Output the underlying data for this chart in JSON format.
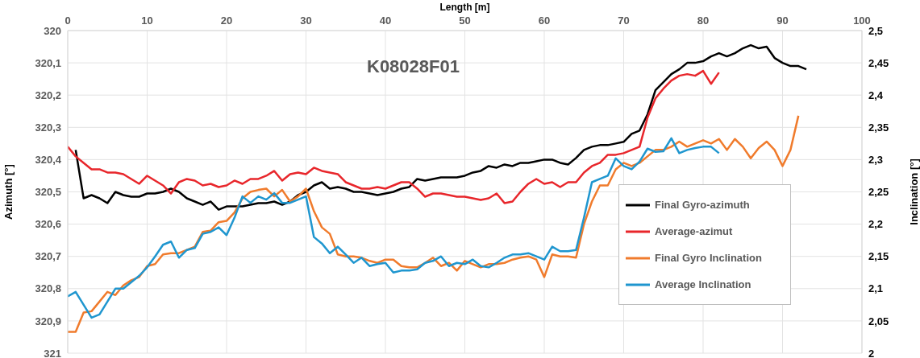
{
  "chart_data": {
    "type": "line",
    "title": "K08028F01",
    "xlabel": "Length [m]",
    "ylabel": "Azimuth [°]",
    "y2label": "Inclination [°]",
    "xlim": [
      0,
      100
    ],
    "xticks": [
      0,
      10,
      20,
      30,
      40,
      50,
      60,
      70,
      80,
      90,
      100
    ],
    "ylim": [
      321,
      320
    ],
    "yticks": [
      320,
      {
        "value": 320.1,
        "label": "320,1"
      },
      {
        "value": 320.2,
        "label": "320,2"
      },
      {
        "value": 320.3,
        "label": "320,3"
      },
      {
        "value": 320.4,
        "label": "320,4"
      },
      {
        "value": 320.5,
        "label": "320,5"
      },
      {
        "value": 320.6,
        "label": "320,6"
      },
      {
        "value": 320.7,
        "label": "320,7"
      },
      {
        "value": 320.8,
        "label": "320,8"
      },
      {
        "value": 320.9,
        "label": "320,9"
      },
      321
    ],
    "y2lim": [
      2,
      2.5
    ],
    "y2ticks": [
      2,
      {
        "value": 2.05,
        "label": "2,05"
      },
      {
        "value": 2.1,
        "label": "2,1"
      },
      {
        "value": 2.15,
        "label": "2,15"
      },
      {
        "value": 2.2,
        "label": "2,2"
      },
      {
        "value": 2.25,
        "label": "2,25"
      },
      {
        "value": 2.3,
        "label": "2,3"
      },
      {
        "value": 2.35,
        "label": "2,35"
      },
      {
        "value": 2.4,
        "label": "2,4"
      },
      {
        "value": 2.45,
        "label": "2,45"
      },
      {
        "value": 2.5,
        "label": "2,5"
      }
    ],
    "grid": true,
    "legend": "bottom right",
    "marker": "none",
    "line_style": "solid",
    "series": [
      {
        "name": "Final Gyro-azimuth",
        "color": "#000000",
        "x": [
          1,
          2,
          3,
          4,
          5,
          6,
          7,
          8,
          9,
          10,
          11,
          12,
          13,
          14,
          15,
          16,
          17,
          18,
          19,
          20,
          21,
          22,
          23,
          24,
          25,
          26,
          27,
          28,
          29,
          30,
          31,
          32,
          33,
          34,
          35,
          36,
          37,
          38,
          39,
          40,
          41,
          42,
          43,
          44,
          45,
          46,
          47,
          48,
          49,
          50,
          51,
          52,
          53,
          54,
          55,
          56,
          57,
          58,
          59,
          60,
          61,
          62,
          63,
          64,
          65,
          66,
          67,
          68,
          69,
          70,
          71,
          72,
          73,
          74,
          75,
          76,
          77,
          78,
          79,
          80,
          81,
          82,
          83,
          84,
          85,
          86,
          87,
          88,
          89,
          90,
          91,
          92,
          93
        ],
        "values": [
          320.37,
          320.52,
          320.51,
          320.52,
          320.535,
          320.5,
          320.51,
          320.515,
          320.515,
          320.505,
          320.505,
          320.5,
          320.49,
          320.5,
          320.52,
          320.53,
          320.54,
          320.53,
          320.555,
          320.545,
          320.545,
          320.545,
          320.54,
          320.535,
          320.535,
          320.53,
          320.54,
          320.53,
          320.51,
          320.5,
          320.48,
          320.47,
          320.49,
          320.485,
          320.49,
          320.5,
          320.5,
          320.505,
          320.51,
          320.505,
          320.5,
          320.49,
          320.485,
          320.46,
          320.465,
          320.46,
          320.455,
          320.455,
          320.455,
          320.45,
          320.44,
          320.435,
          320.42,
          320.425,
          320.415,
          320.42,
          320.41,
          320.41,
          320.405,
          320.4,
          320.4,
          320.41,
          320.415,
          320.395,
          320.37,
          320.36,
          320.355,
          320.355,
          320.35,
          320.345,
          320.32,
          320.31,
          320.26,
          320.185,
          320.16,
          320.135,
          320.12,
          320.1,
          320.1,
          320.095,
          320.08,
          320.07,
          320.08,
          320.07,
          320.055,
          320.045,
          320.055,
          320.05,
          320.085,
          320.1,
          320.11,
          320.11,
          320.12
        ]
      },
      {
        "name": "Average-azimut",
        "color": "#e8262b",
        "x": [
          0,
          1,
          2,
          3,
          4,
          5,
          6,
          7,
          8,
          9,
          10,
          11,
          12,
          13,
          14,
          15,
          16,
          17,
          18,
          19,
          20,
          21,
          22,
          23,
          24,
          25,
          26,
          27,
          28,
          29,
          30,
          31,
          32,
          33,
          34,
          35,
          36,
          37,
          38,
          39,
          40,
          41,
          42,
          43,
          44,
          45,
          46,
          47,
          48,
          49,
          50,
          51,
          52,
          53,
          54,
          55,
          56,
          57,
          58,
          59,
          60,
          61,
          62,
          63,
          64,
          65,
          66,
          67,
          68,
          69,
          70,
          71,
          72,
          73,
          74,
          75,
          76,
          77,
          78,
          79,
          80,
          81,
          82
        ],
        "values": [
          320.36,
          320.39,
          320.41,
          320.43,
          320.43,
          320.44,
          320.44,
          320.445,
          320.46,
          320.475,
          320.45,
          320.465,
          320.48,
          320.505,
          320.47,
          320.46,
          320.465,
          320.48,
          320.475,
          320.485,
          320.48,
          320.465,
          320.475,
          320.46,
          320.46,
          320.45,
          320.435,
          320.465,
          320.445,
          320.44,
          320.445,
          320.425,
          320.435,
          320.44,
          320.445,
          320.47,
          320.48,
          320.49,
          320.49,
          320.485,
          320.49,
          320.48,
          320.47,
          320.47,
          320.49,
          320.515,
          320.505,
          320.505,
          320.51,
          320.515,
          320.515,
          320.52,
          320.525,
          320.52,
          320.505,
          320.535,
          320.53,
          320.5,
          320.475,
          320.46,
          320.475,
          320.47,
          320.485,
          320.47,
          320.47,
          320.44,
          320.42,
          320.41,
          320.385,
          320.385,
          320.38,
          320.37,
          320.36,
          320.27,
          320.21,
          320.18,
          320.155,
          320.14,
          320.135,
          320.14,
          320.125,
          320.165,
          320.13
        ]
      },
      {
        "name": "Final Gyro Inclination",
        "color": "#f07b2c",
        "axis": "y2",
        "x": [
          0,
          1,
          2,
          3,
          4,
          5,
          6,
          7,
          8,
          9,
          10,
          11,
          12,
          13,
          14,
          15,
          16,
          17,
          18,
          19,
          20,
          21,
          22,
          23,
          24,
          25,
          26,
          27,
          28,
          29,
          30,
          31,
          32,
          33,
          34,
          35,
          36,
          37,
          38,
          39,
          40,
          41,
          42,
          43,
          44,
          45,
          46,
          47,
          48,
          49,
          50,
          51,
          52,
          53,
          54,
          55,
          56,
          57,
          58,
          59,
          60,
          61,
          62,
          63,
          64,
          65,
          66,
          67,
          68,
          69,
          70,
          71,
          72,
          73,
          74,
          75,
          76,
          77,
          78,
          79,
          80,
          81,
          82,
          83,
          84,
          85,
          86,
          87,
          88,
          89,
          90,
          91,
          92
        ],
        "values": [
          2.033,
          2.033,
          2.063,
          2.065,
          2.08,
          2.095,
          2.09,
          2.105,
          2.113,
          2.118,
          2.135,
          2.138,
          2.153,
          2.155,
          2.155,
          2.16,
          2.165,
          2.188,
          2.19,
          2.203,
          2.205,
          2.218,
          2.24,
          2.25,
          2.253,
          2.255,
          2.243,
          2.253,
          2.235,
          2.243,
          2.255,
          2.22,
          2.195,
          2.185,
          2.153,
          2.15,
          2.15,
          2.148,
          2.143,
          2.14,
          2.145,
          2.145,
          2.135,
          2.133,
          2.133,
          2.14,
          2.148,
          2.135,
          2.14,
          2.128,
          2.143,
          2.138,
          2.133,
          2.138,
          2.138,
          2.14,
          2.145,
          2.148,
          2.15,
          2.145,
          2.118,
          2.153,
          2.15,
          2.15,
          2.148,
          2.2,
          2.235,
          2.26,
          2.26,
          2.285,
          2.295,
          2.29,
          2.295,
          2.305,
          2.315,
          2.315,
          2.32,
          2.328,
          2.32,
          2.325,
          2.33,
          2.325,
          2.332,
          2.315,
          2.332,
          2.32,
          2.302,
          2.318,
          2.328,
          2.315,
          2.29,
          2.315,
          2.368
        ]
      },
      {
        "name": "Average Inclination",
        "color": "#1f96cf",
        "axis": "y2",
        "x": [
          0,
          1,
          2,
          3,
          4,
          5,
          6,
          7,
          8,
          9,
          10,
          11,
          12,
          13,
          14,
          15,
          16,
          17,
          18,
          19,
          20,
          21,
          22,
          23,
          24,
          25,
          26,
          27,
          28,
          29,
          30,
          31,
          32,
          33,
          34,
          35,
          36,
          37,
          38,
          39,
          40,
          41,
          42,
          43,
          44,
          45,
          46,
          47,
          48,
          49,
          50,
          51,
          52,
          53,
          54,
          55,
          56,
          57,
          58,
          59,
          60,
          61,
          62,
          63,
          64,
          65,
          66,
          67,
          68,
          69,
          70,
          71,
          72,
          73,
          74,
          75,
          76,
          77,
          78,
          79,
          80,
          81,
          82
        ],
        "values": [
          2.088,
          2.095,
          2.075,
          2.055,
          2.06,
          2.08,
          2.1,
          2.1,
          2.11,
          2.12,
          2.133,
          2.15,
          2.168,
          2.173,
          2.148,
          2.16,
          2.163,
          2.185,
          2.188,
          2.195,
          2.183,
          2.21,
          2.243,
          2.233,
          2.243,
          2.238,
          2.248,
          2.233,
          2.233,
          2.238,
          2.243,
          2.18,
          2.17,
          2.155,
          2.165,
          2.153,
          2.14,
          2.148,
          2.135,
          2.138,
          2.14,
          2.125,
          2.128,
          2.128,
          2.13,
          2.14,
          2.143,
          2.15,
          2.135,
          2.14,
          2.138,
          2.145,
          2.135,
          2.133,
          2.14,
          2.148,
          2.153,
          2.153,
          2.155,
          2.15,
          2.145,
          2.165,
          2.158,
          2.158,
          2.16,
          2.21,
          2.265,
          2.27,
          2.275,
          2.302,
          2.29,
          2.285,
          2.297,
          2.317,
          2.312,
          2.313,
          2.333,
          2.31,
          2.315,
          2.318,
          2.32,
          2.32,
          2.31
        ]
      }
    ]
  }
}
